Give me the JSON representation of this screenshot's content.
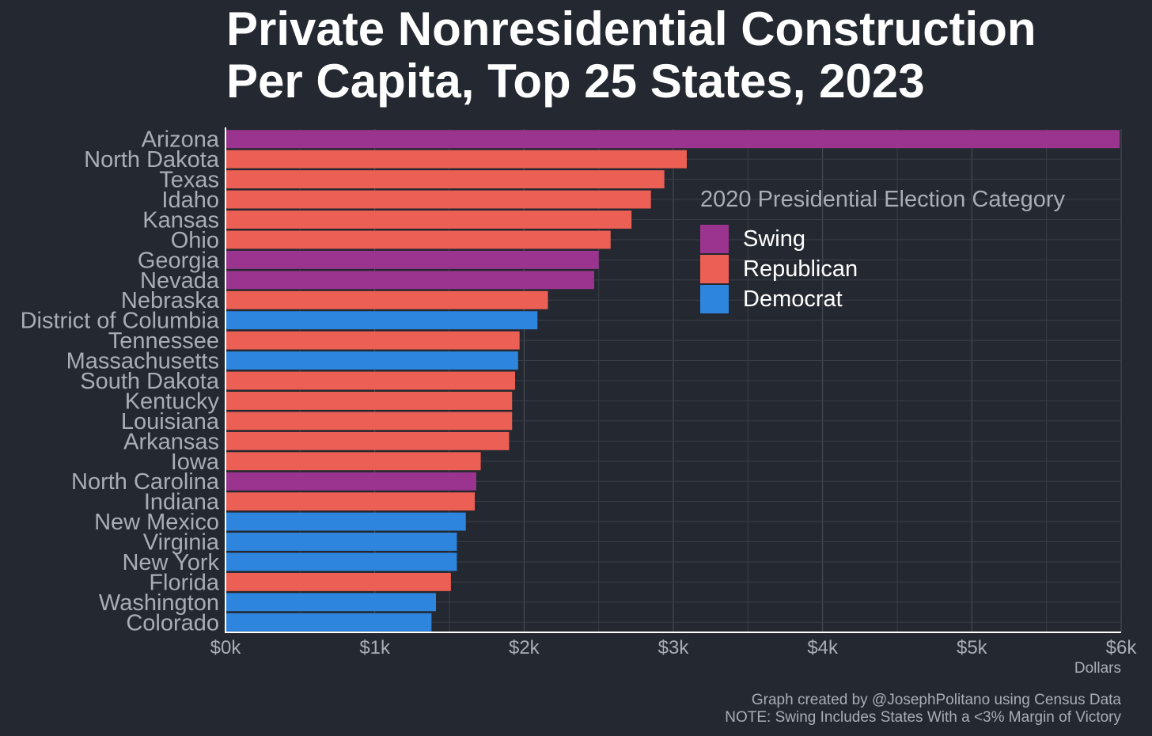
{
  "chart_data": {
    "type": "bar",
    "orientation": "horizontal",
    "title_lines": [
      "Private Nonresidential Construction",
      "Per Capita, Top 25 States, 2023"
    ],
    "xlabel": "Dollars",
    "xlim": [
      0,
      6000
    ],
    "x_ticks": [
      0,
      1000,
      2000,
      3000,
      4000,
      5000,
      6000
    ],
    "x_tick_labels": [
      "$0k",
      "$1k",
      "$2k",
      "$3k",
      "$4k",
      "$5k",
      "$6k"
    ],
    "grid": true,
    "legend": {
      "title": "2020 Presidential Election Category",
      "placement": "top-right",
      "items": [
        {
          "key": "Swing",
          "label": "Swing",
          "color": "#9b348e"
        },
        {
          "key": "Republican",
          "label": "Republican",
          "color": "#ec5f55"
        },
        {
          "key": "Democrat",
          "label": "Democrat",
          "color": "#2e85de"
        }
      ]
    },
    "categories": [
      "Arizona",
      "North Dakota",
      "Texas",
      "Idaho",
      "Kansas",
      "Ohio",
      "Georgia",
      "Nevada",
      "Nebraska",
      "District of Columbia",
      "Tennessee",
      "Massachusetts",
      "South Dakota",
      "Kentucky",
      "Louisiana",
      "Arkansas",
      "Iowa",
      "North Carolina",
      "Indiana",
      "New Mexico",
      "Virginia",
      "New York",
      "Florida",
      "Washington",
      "Colorado"
    ],
    "values": [
      5990,
      3090,
      2940,
      2850,
      2720,
      2580,
      2500,
      2470,
      2160,
      2090,
      1970,
      1960,
      1940,
      1920,
      1920,
      1900,
      1710,
      1680,
      1670,
      1610,
      1550,
      1550,
      1510,
      1410,
      1380
    ],
    "group": [
      "Swing",
      "Republican",
      "Republican",
      "Republican",
      "Republican",
      "Republican",
      "Swing",
      "Swing",
      "Republican",
      "Democrat",
      "Republican",
      "Democrat",
      "Republican",
      "Republican",
      "Republican",
      "Republican",
      "Republican",
      "Swing",
      "Republican",
      "Democrat",
      "Democrat",
      "Democrat",
      "Republican",
      "Democrat",
      "Democrat"
    ]
  },
  "credits": {
    "line1": "Graph created by @JosephPolitano using Census Data",
    "line2": "NOTE: Swing Includes States With a <3% Margin of Victory"
  }
}
